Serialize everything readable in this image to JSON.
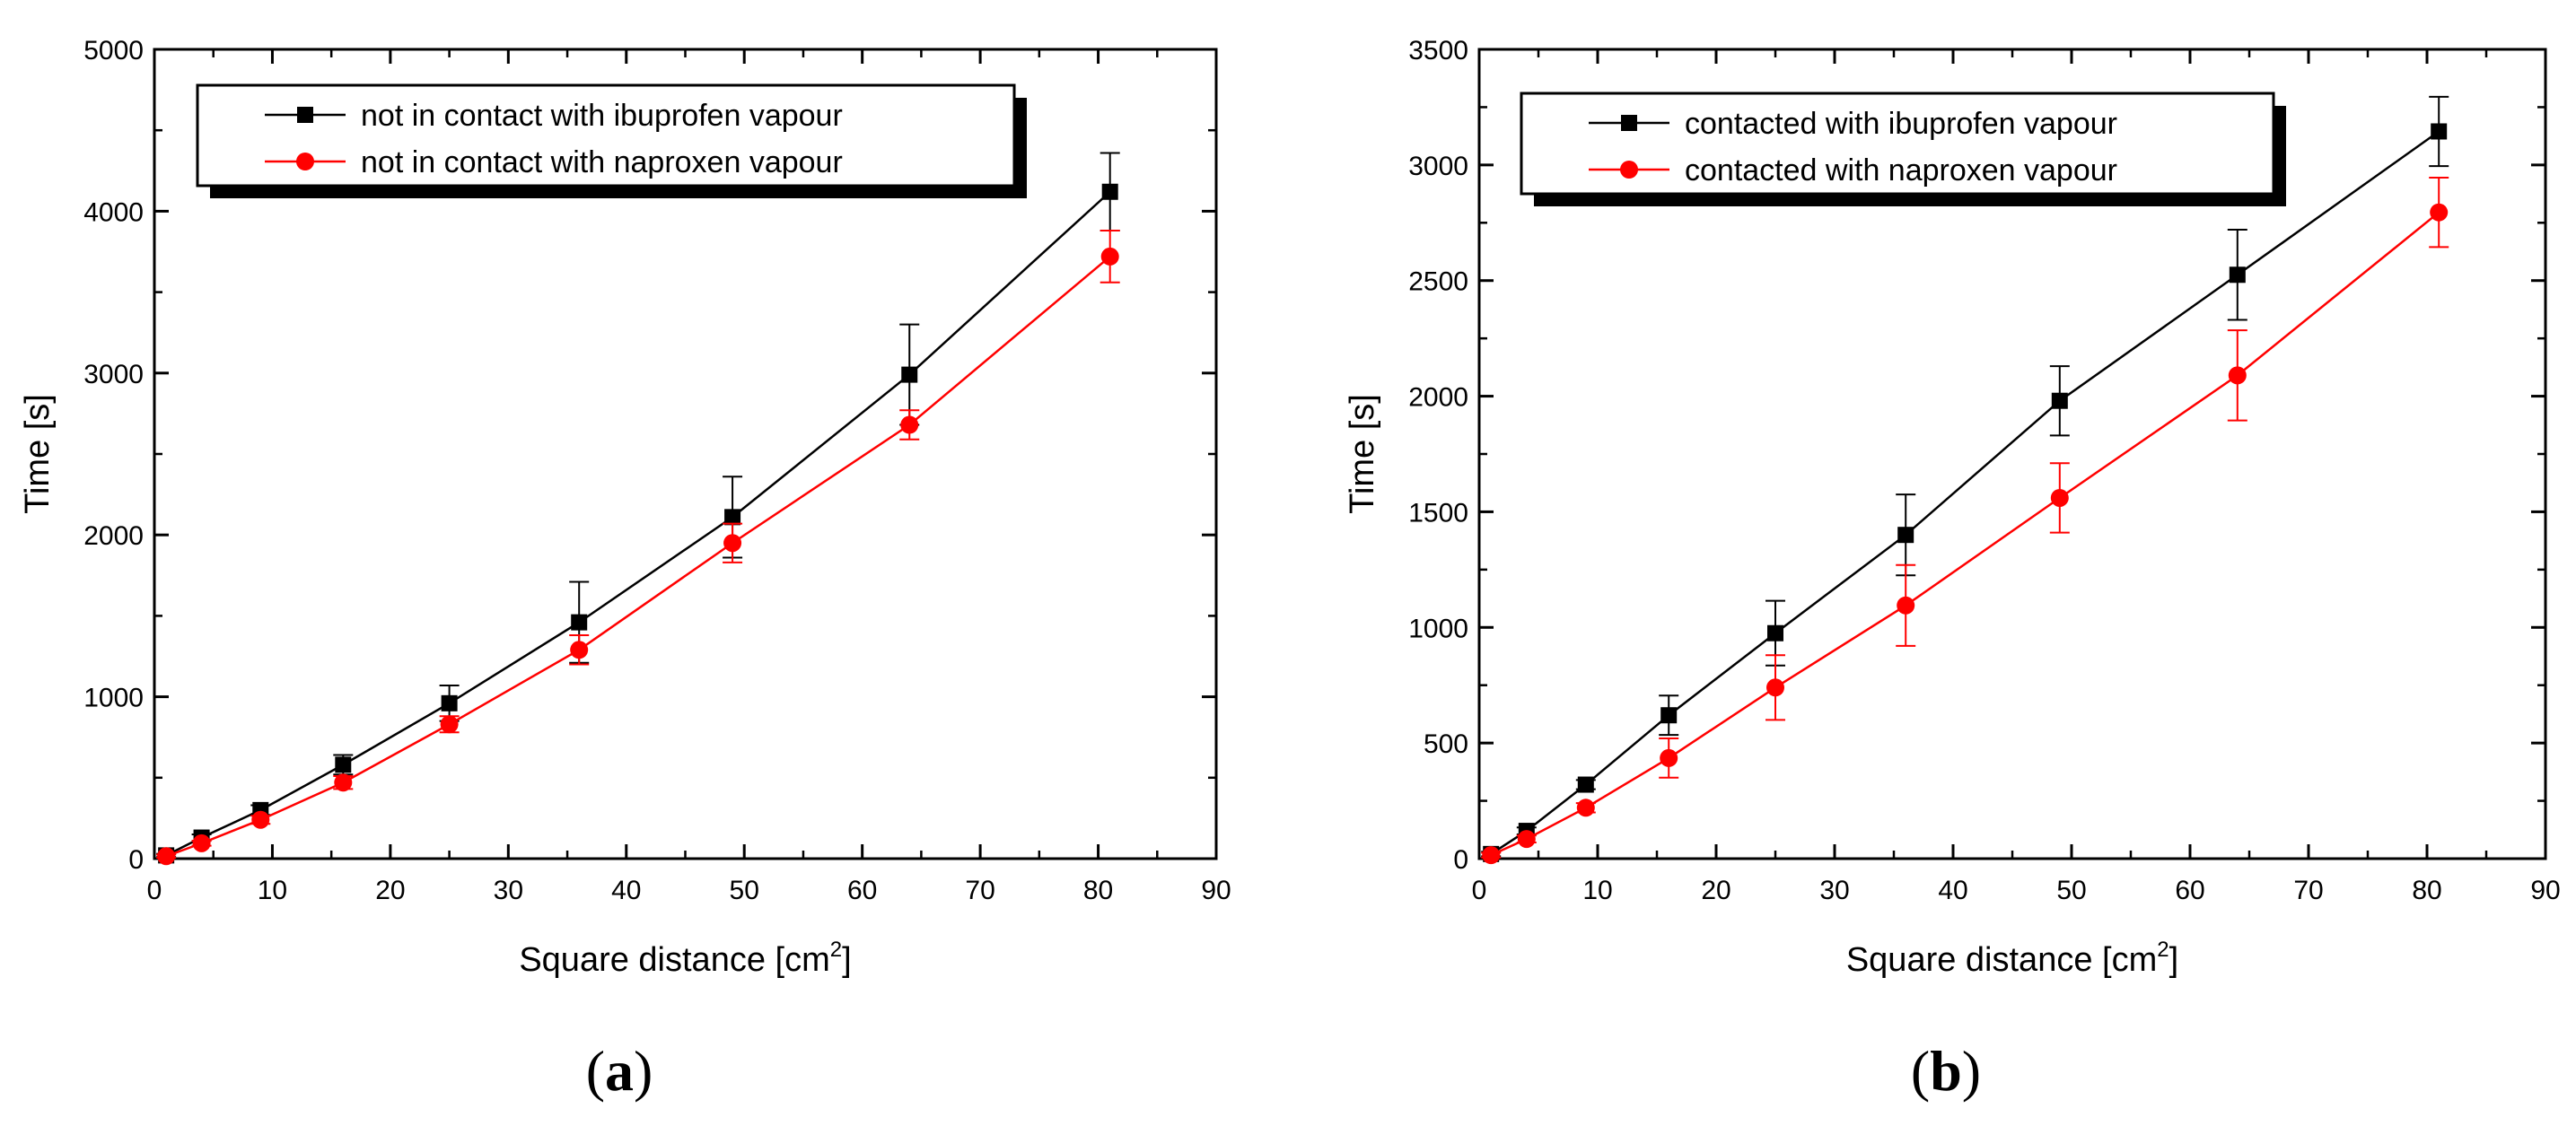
{
  "chart_data": [
    {
      "type": "line",
      "panel_label": "(a)",
      "panel_letter": "a",
      "xlabel": "Square distance [cm",
      "xlabel_sup": "2",
      "xlabel_end": "]",
      "ylabel": "Time [s]",
      "xlim": [
        0,
        90
      ],
      "ylim": [
        0,
        5000
      ],
      "xticks": [
        0,
        10,
        20,
        30,
        40,
        50,
        60,
        70,
        80,
        90
      ],
      "yticks": [
        0,
        1000,
        2000,
        3000,
        4000,
        5000
      ],
      "grid": false,
      "legend_position": "top-left",
      "x": [
        1,
        4,
        9,
        16,
        25,
        36,
        49,
        64,
        81
      ],
      "series": [
        {
          "name": "not in contact with ibuprofen vapour",
          "color": "#000000",
          "marker": "square",
          "values": [
            20,
            130,
            300,
            580,
            960,
            1460,
            2110,
            2990,
            4120
          ],
          "errors": [
            10,
            20,
            30,
            60,
            110,
            250,
            250,
            310,
            240
          ]
        },
        {
          "name": "not in contact with naproxen vapour",
          "color": "#ff0000",
          "marker": "circle",
          "values": [
            15,
            95,
            240,
            470,
            830,
            1290,
            1950,
            2680,
            3720
          ],
          "errors": [
            10,
            15,
            25,
            40,
            50,
            90,
            120,
            90,
            160
          ]
        }
      ]
    },
    {
      "type": "line",
      "panel_label": "(b)",
      "panel_letter": "b",
      "xlabel": "Square distance [cm",
      "xlabel_sup": "2",
      "xlabel_end": "]",
      "ylabel": "Time [s]",
      "xlim": [
        0,
        90
      ],
      "ylim": [
        0,
        3500
      ],
      "xticks": [
        0,
        10,
        20,
        30,
        40,
        50,
        60,
        70,
        80,
        90
      ],
      "yticks": [
        0,
        500,
        1000,
        1500,
        2000,
        2500,
        3000,
        3500
      ],
      "grid": false,
      "legend_position": "top-left",
      "x": [
        1,
        4,
        9,
        16,
        25,
        36,
        49,
        64,
        81
      ],
      "series": [
        {
          "name": "contacted with ibuprofen vapour",
          "color": "#000000",
          "marker": "square",
          "values": [
            20,
            120,
            320,
            620,
            975,
            1400,
            1980,
            2525,
            3145
          ],
          "errors": [
            10,
            15,
            20,
            85,
            140,
            175,
            150,
            195,
            150
          ]
        },
        {
          "name": "contacted with naproxen vapour",
          "color": "#ff0000",
          "marker": "circle",
          "values": [
            15,
            85,
            220,
            435,
            740,
            1095,
            1560,
            2090,
            2795
          ],
          "errors": [
            10,
            15,
            20,
            85,
            140,
            175,
            150,
            195,
            150
          ]
        }
      ]
    }
  ]
}
